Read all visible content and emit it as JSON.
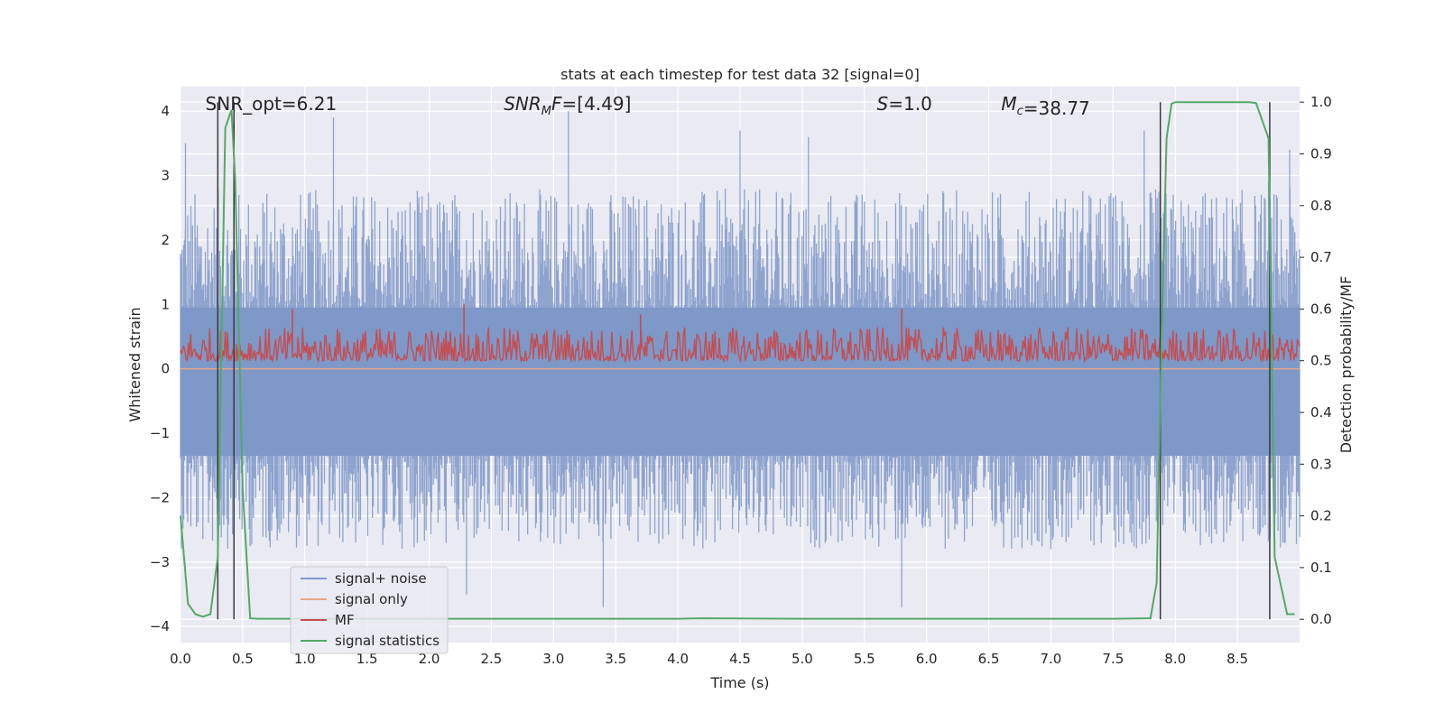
{
  "chart_data": {
    "type": "line",
    "title": "stats at each timestep for test data 32 [signal=0]",
    "xlabel": "Time (s)",
    "ylabel_left": "Whitened strain",
    "ylabel_right": "Detection probability/MF",
    "xlim": [
      0.0,
      9.0
    ],
    "ylim_left": [
      -4.25,
      4.38
    ],
    "ylim_right": [
      -0.045,
      1.03
    ],
    "x_ticks": [
      "0.0",
      "0.5",
      "1.0",
      "1.5",
      "2.0",
      "2.5",
      "3.0",
      "3.5",
      "4.0",
      "4.5",
      "5.0",
      "5.5",
      "6.0",
      "6.5",
      "7.0",
      "7.5",
      "8.0",
      "8.5"
    ],
    "y_left_ticks": [
      "4",
      "3",
      "2",
      "1",
      "0",
      "−1",
      "−2",
      "−3",
      "−4"
    ],
    "y_right_ticks": [
      "1.0",
      "0.9",
      "0.8",
      "0.7",
      "0.6",
      "0.5",
      "0.4",
      "0.3",
      "0.2",
      "0.1",
      "0.0"
    ],
    "grid": true,
    "legend_position": "lower-left",
    "annotations": [
      {
        "x": 0.2,
        "prefix": "SNR_opt=",
        "value": "6.21"
      },
      {
        "x": 2.6,
        "prefix": "SNR",
        "sub": "M",
        "suffix": "F=",
        "value": "[4.49]"
      },
      {
        "x": 5.6,
        "prefix": "S",
        "value": "=1.0"
      },
      {
        "x": 6.6,
        "prefix": "M",
        "sub": "c",
        "value": "=38.77"
      }
    ],
    "vertical_lines": [
      0.3,
      0.43,
      7.88,
      8.76
    ],
    "series": [
      {
        "name": "signal+ noise",
        "color": "#7e98c8",
        "axis": "left",
        "envelope_upper_typical": 1.7,
        "envelope_lower_typical": -1.8,
        "peaks": [
          [
            0.04,
            3.5
          ],
          [
            1.23,
            3.9
          ],
          [
            2.3,
            2.0
          ],
          [
            3.12,
            4.0
          ],
          [
            4.5,
            3.7
          ],
          [
            5.05,
            3.6
          ],
          [
            7.75,
            3.7
          ],
          [
            8.75,
            2.9
          ],
          [
            8.92,
            3.4
          ],
          [
            3.4,
            -3.7
          ],
          [
            5.8,
            -3.7
          ],
          [
            2.3,
            -3.5
          ]
        ]
      },
      {
        "name": "signal only",
        "color": "#e8a585",
        "axis": "left",
        "constant": 0.0
      },
      {
        "name": "MF",
        "color": "#c44e52",
        "axis": "right",
        "baseline": 0.53,
        "peaks": [
          [
            0.9,
            0.6
          ],
          [
            2.28,
            0.61
          ],
          [
            3.7,
            0.59
          ],
          [
            5.8,
            0.6
          ]
        ]
      },
      {
        "name": "signal statistics",
        "color": "#55a868",
        "axis": "right",
        "x": [
          0.0,
          0.06,
          0.12,
          0.18,
          0.24,
          0.3,
          0.36,
          0.41,
          0.44,
          0.5,
          0.56,
          0.62,
          1.0,
          2.0,
          3.0,
          4.0,
          4.2,
          5.0,
          6.0,
          7.0,
          7.5,
          7.8,
          7.85,
          7.89,
          7.93,
          7.97,
          8.0,
          8.5,
          8.6,
          8.65,
          8.75,
          8.8,
          8.9,
          8.96
        ],
        "values": [
          0.2,
          0.03,
          0.01,
          0.005,
          0.01,
          0.12,
          0.95,
          0.985,
          0.85,
          0.25,
          0.002,
          0.001,
          0.001,
          0.001,
          0.001,
          0.001,
          0.002,
          0.001,
          0.001,
          0.001,
          0.001,
          0.002,
          0.07,
          0.55,
          0.93,
          0.997,
          1.0,
          1.0,
          1.0,
          0.998,
          0.93,
          0.12,
          0.01,
          0.01
        ]
      }
    ]
  }
}
